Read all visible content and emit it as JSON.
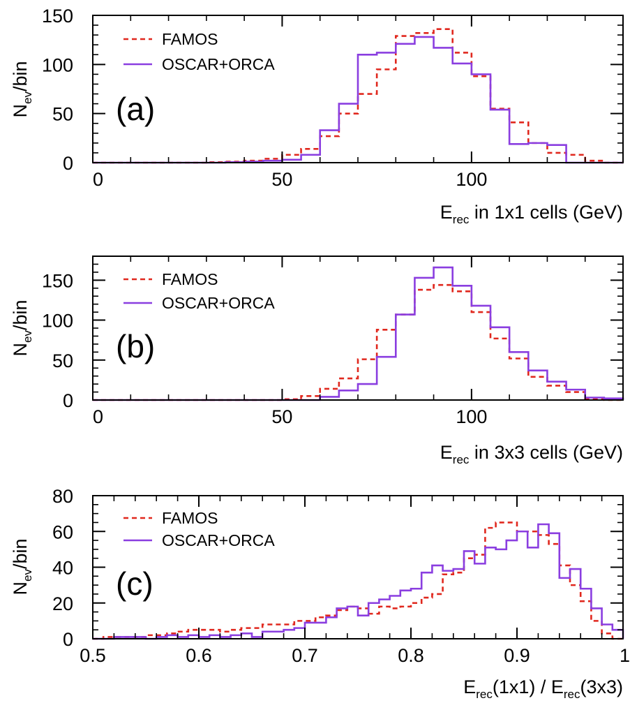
{
  "colors": {
    "famos": "#e0281e",
    "oscar": "#8a3ee0",
    "axis": "#000000"
  },
  "chart_data": [
    {
      "type": "step-histogram",
      "panel_label": "(a)",
      "ylabel_main": "N",
      "ylabel_sub": "ev",
      "ylabel_tail": "/bin",
      "xlabel_main": "E",
      "xlabel_sub": "rec",
      "xlabel_tail": " in 1x1 cells (GeV)",
      "xlim": [
        0,
        140
      ],
      "ylim": [
        0,
        150
      ],
      "xticks": [
        {
          "v": 0,
          "label": "0"
        },
        {
          "v": 50,
          "label": "50"
        },
        {
          "v": 100,
          "label": "100"
        }
      ],
      "yticks": [
        {
          "v": 0,
          "label": "0"
        },
        {
          "v": 50,
          "label": "50"
        },
        {
          "v": 100,
          "label": "100"
        },
        {
          "v": 150,
          "label": "150"
        }
      ],
      "x_minor_step": 10,
      "y_minor_step": 10,
      "bin_edges_start": 0,
      "bin_width": 5,
      "series": [
        {
          "name": "FAMOS",
          "style": "dashed",
          "color_key": "famos",
          "values": [
            0,
            0,
            0,
            0,
            0,
            0,
            0.5,
            1,
            2,
            4,
            8,
            14,
            27,
            50,
            70,
            95,
            129,
            132,
            136,
            112,
            88,
            55,
            41,
            20,
            10,
            8,
            2,
            0
          ]
        },
        {
          "name": "OSCAR+ORCA",
          "style": "solid",
          "color_key": "oscar",
          "values": [
            0,
            0,
            0,
            0,
            0,
            0,
            0,
            0.5,
            1,
            2,
            3,
            8,
            33,
            60,
            110,
            112,
            121,
            128,
            117,
            101,
            90,
            54,
            19,
            20,
            18,
            0,
            0,
            0
          ]
        }
      ]
    },
    {
      "type": "step-histogram",
      "panel_label": "(b)",
      "ylabel_main": "N",
      "ylabel_sub": "ev",
      "ylabel_tail": "/bin",
      "xlabel_main": "E",
      "xlabel_sub": "rec",
      "xlabel_tail": " in 3x3 cells (GeV)",
      "xlim": [
        0,
        140
      ],
      "ylim": [
        0,
        180
      ],
      "xticks": [
        {
          "v": 0,
          "label": "0"
        },
        {
          "v": 50,
          "label": "50"
        },
        {
          "v": 100,
          "label": "100"
        }
      ],
      "yticks": [
        {
          "v": 0,
          "label": "0"
        },
        {
          "v": 50,
          "label": "50"
        },
        {
          "v": 100,
          "label": "100"
        },
        {
          "v": 150,
          "label": "150"
        }
      ],
      "x_minor_step": 10,
      "y_minor_step": 10,
      "bin_edges_start": 0,
      "bin_width": 5,
      "series": [
        {
          "name": "FAMOS",
          "style": "dashed",
          "color_key": "famos",
          "values": [
            0,
            0,
            0,
            0,
            0,
            0,
            0,
            0,
            0,
            0,
            1,
            5,
            14,
            27,
            51,
            88,
            107,
            138,
            144,
            136,
            110,
            77,
            52,
            29,
            18,
            10,
            2,
            0
          ]
        },
        {
          "name": "OSCAR+ORCA",
          "style": "solid",
          "color_key": "oscar",
          "values": [
            0,
            0,
            0,
            0,
            0,
            0,
            0,
            0,
            0,
            0,
            0,
            0,
            4,
            12,
            20,
            54,
            107,
            153,
            166,
            143,
            118,
            91,
            60,
            37,
            23,
            13,
            3,
            2
          ]
        }
      ]
    },
    {
      "type": "step-histogram",
      "panel_label": "(c)",
      "ylabel_main": "N",
      "ylabel_sub": "ev",
      "ylabel_tail": "/bin",
      "xlabel_main": "E",
      "xlabel_sub": "rec",
      "xlabel_tail": "(1x1) / E",
      "xlabel_sub2": "rec",
      "xlabel_tail2": "(3x3)",
      "xlim": [
        0.5,
        1.0
      ],
      "ylim": [
        0,
        80
      ],
      "xticks": [
        {
          "v": 0.5,
          "label": "0.5"
        },
        {
          "v": 0.6,
          "label": "0.6"
        },
        {
          "v": 0.7,
          "label": "0.7"
        },
        {
          "v": 0.8,
          "label": "0.8"
        },
        {
          "v": 0.9,
          "label": "0.9"
        },
        {
          "v": 1.0,
          "label": "1"
        }
      ],
      "yticks": [
        {
          "v": 0,
          "label": "0"
        },
        {
          "v": 20,
          "label": "20"
        },
        {
          "v": 40,
          "label": "40"
        },
        {
          "v": 60,
          "label": "60"
        },
        {
          "v": 80,
          "label": "80"
        }
      ],
      "x_minor_step": 0.02,
      "y_minor_step": 5,
      "bin_edges_start": 0.5,
      "bin_width": 0.01,
      "series": [
        {
          "name": "FAMOS",
          "style": "dashed",
          "color_key": "famos",
          "values": [
            0,
            1,
            1,
            1,
            1,
            2,
            2,
            3,
            4,
            5,
            5,
            5,
            4,
            5,
            6,
            6,
            8,
            8,
            8,
            10,
            10,
            12,
            13,
            16,
            18,
            17,
            14,
            18,
            17,
            18,
            20,
            23,
            25,
            36,
            37,
            45,
            47,
            62,
            65,
            65,
            60,
            60,
            58,
            53,
            41,
            30,
            21,
            10,
            3,
            0
          ]
        },
        {
          "name": "OSCAR+ORCA",
          "style": "solid",
          "color_key": "oscar",
          "values": [
            0,
            0,
            1,
            1,
            1,
            0,
            1,
            2,
            1,
            2,
            1,
            2,
            1,
            2,
            3,
            1,
            4,
            4,
            5,
            6,
            9,
            9,
            12,
            17,
            18,
            13,
            20,
            22,
            24,
            27,
            28,
            37,
            41,
            38,
            39,
            49,
            42,
            51,
            50,
            55,
            60,
            51,
            64,
            59,
            34,
            39,
            28,
            17,
            8,
            5
          ]
        }
      ]
    }
  ]
}
